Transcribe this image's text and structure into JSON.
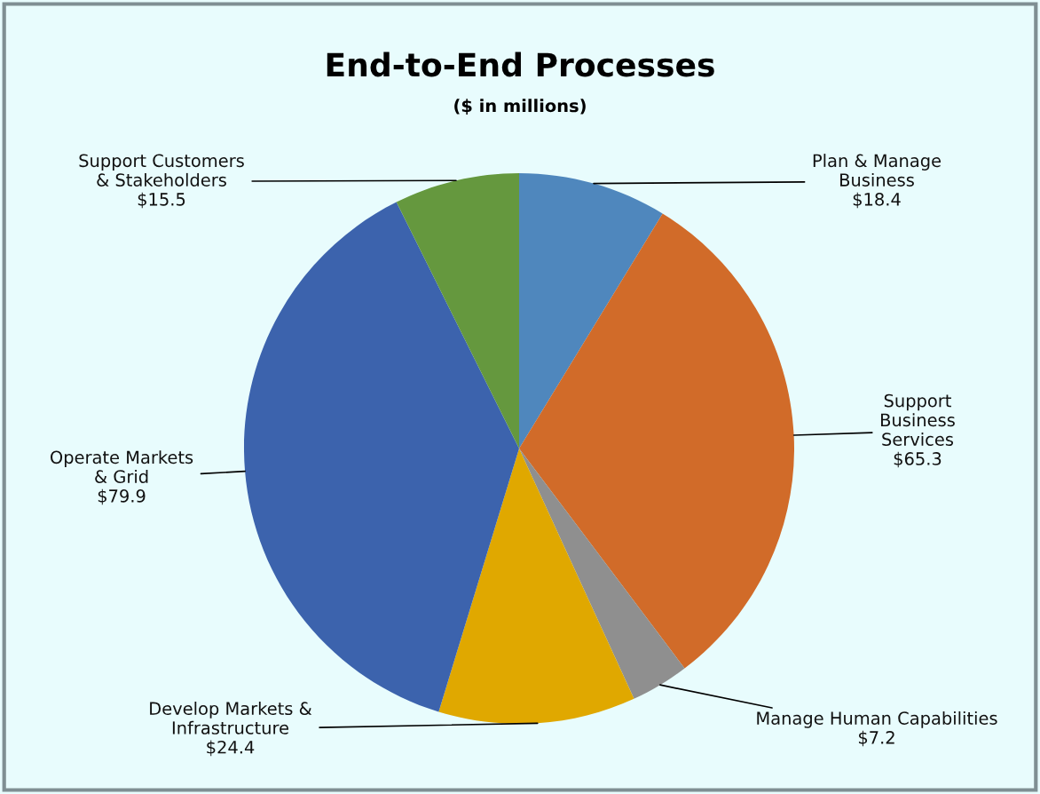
{
  "chart_data": {
    "type": "pie",
    "title": "End-to-End Processes",
    "subtitle": "($ in millions)",
    "categories": [
      "Plan & Manage\nBusiness",
      "Support\nBusiness\nServices",
      "Manage Human Capabilities",
      "Develop Markets &\nInfrastructure",
      "Operate Markets\n& Grid",
      "Support Customers\n& Stakeholders"
    ],
    "values": [
      18.4,
      65.3,
      7.2,
      24.4,
      79.9,
      15.5
    ],
    "value_labels": [
      "$18.4",
      "$65.3",
      "$7.2",
      "$24.4",
      "$79.9",
      "$15.5"
    ],
    "colors": [
      "#4f87bd",
      "#d16b29",
      "#8f8f8f",
      "#e0a800",
      "#3c63ad",
      "#65983e"
    ],
    "legend": false
  }
}
